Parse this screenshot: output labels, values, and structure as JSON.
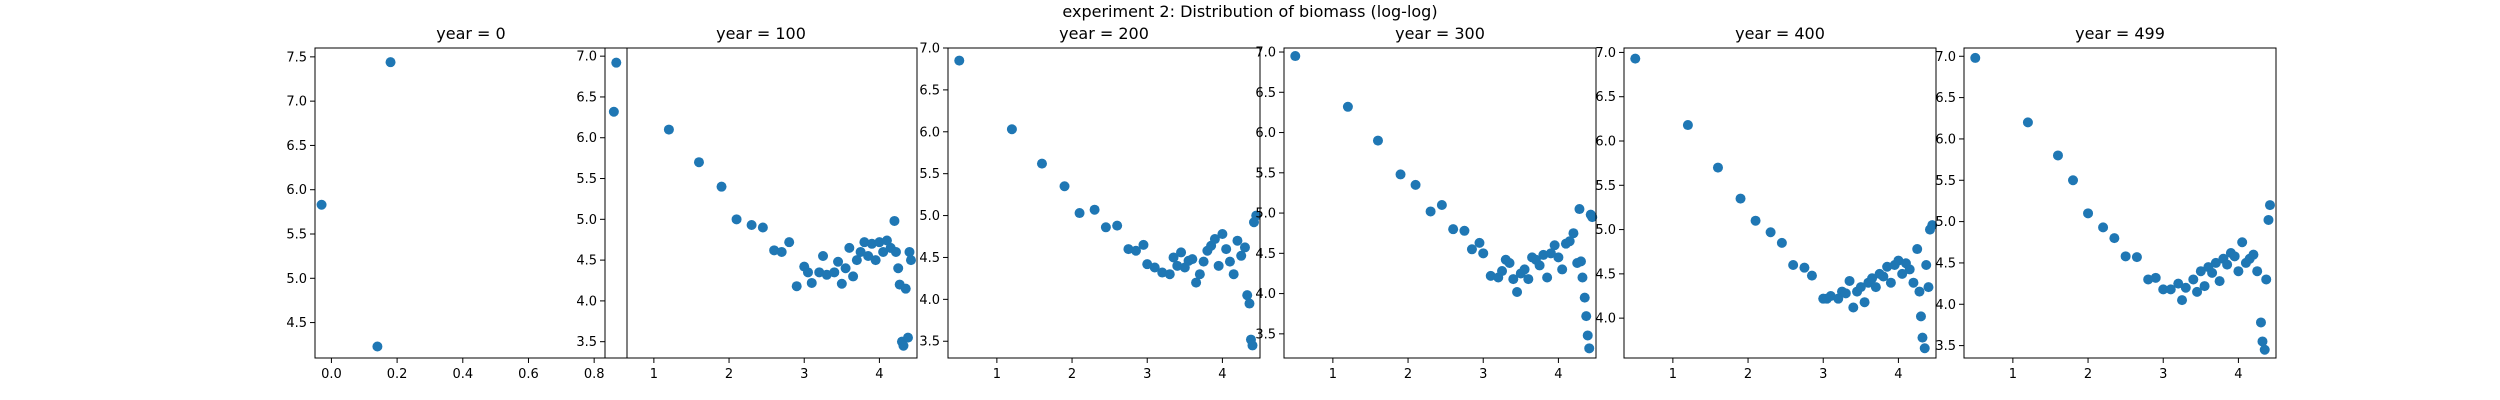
{
  "figure": {
    "title": "experiment 2: Distribution of biomass (log-log)",
    "marker_color": "#1f77b4"
  },
  "chart_data": [
    {
      "type": "scatter",
      "title": "year = 0",
      "xlim": [
        -0.05,
        0.9
      ],
      "ylim": [
        4.1,
        7.6
      ],
      "xticks": [
        0.0,
        0.2,
        0.4,
        0.6,
        0.8
      ],
      "xtick_labels": [
        "0.0",
        "0.2",
        "0.4",
        "0.6",
        "0.8"
      ],
      "yticks": [
        4.5,
        5.0,
        5.5,
        6.0,
        6.5,
        7.0,
        7.5
      ],
      "ytick_labels": [
        "4.5",
        "5.0",
        "5.5",
        "6.0",
        "6.5",
        "7.0",
        "7.5"
      ],
      "points": [
        [
          -0.03,
          5.83
        ],
        [
          0.14,
          4.23
        ],
        [
          0.18,
          7.44
        ],
        [
          0.86,
          6.88
        ]
      ]
    },
    {
      "type": "scatter",
      "title": "year = 100",
      "xlim": [
        0.35,
        4.5
      ],
      "ylim": [
        3.3,
        7.1
      ],
      "xticks": [
        1,
        2,
        3,
        4
      ],
      "xtick_labels": [
        "1",
        "2",
        "3",
        "4"
      ],
      "yticks": [
        3.5,
        4.0,
        4.5,
        5.0,
        5.5,
        6.0,
        6.5,
        7.0
      ],
      "ytick_labels": [
        "3.5",
        "4.0",
        "4.5",
        "5.0",
        "5.5",
        "6.0",
        "6.5",
        "7.0"
      ],
      "points": [
        [
          0.5,
          6.92
        ],
        [
          1.2,
          6.1
        ],
        [
          1.6,
          5.7
        ],
        [
          1.9,
          5.4
        ],
        [
          2.1,
          5.0
        ],
        [
          2.3,
          4.93
        ],
        [
          2.45,
          4.9
        ],
        [
          2.6,
          4.62
        ],
        [
          2.7,
          4.6
        ],
        [
          2.8,
          4.72
        ],
        [
          2.9,
          4.18
        ],
        [
          3.0,
          4.42
        ],
        [
          3.05,
          4.35
        ],
        [
          3.1,
          4.22
        ],
        [
          3.2,
          4.35
        ],
        [
          3.25,
          4.55
        ],
        [
          3.3,
          4.32
        ],
        [
          3.4,
          4.35
        ],
        [
          3.45,
          4.48
        ],
        [
          3.5,
          4.21
        ],
        [
          3.55,
          4.4
        ],
        [
          3.6,
          4.65
        ],
        [
          3.65,
          4.3
        ],
        [
          3.7,
          4.5
        ],
        [
          3.75,
          4.6
        ],
        [
          3.8,
          4.72
        ],
        [
          3.85,
          4.55
        ],
        [
          3.9,
          4.7
        ],
        [
          3.95,
          4.5
        ],
        [
          4.0,
          4.72
        ],
        [
          4.05,
          4.6
        ],
        [
          4.1,
          4.74
        ],
        [
          4.15,
          4.65
        ],
        [
          4.2,
          4.98
        ],
        [
          4.22,
          4.6
        ],
        [
          4.25,
          4.4
        ],
        [
          4.27,
          4.2
        ],
        [
          4.3,
          3.5
        ],
        [
          4.32,
          3.45
        ],
        [
          4.35,
          4.15
        ],
        [
          4.38,
          3.55
        ],
        [
          4.4,
          4.6
        ],
        [
          4.42,
          4.5
        ]
      ]
    },
    {
      "type": "scatter",
      "title": "year = 200",
      "xlim": [
        0.35,
        4.5
      ],
      "ylim": [
        3.3,
        7.0
      ],
      "xticks": [
        1,
        2,
        3,
        4
      ],
      "xtick_labels": [
        "1",
        "2",
        "3",
        "4"
      ],
      "yticks": [
        3.5,
        4.0,
        4.5,
        5.0,
        5.5,
        6.0,
        6.5,
        7.0
      ],
      "ytick_labels": [
        "3.5",
        "4.0",
        "4.5",
        "5.0",
        "5.5",
        "6.0",
        "6.5",
        "7.0"
      ],
      "points": [
        [
          0.5,
          6.85
        ],
        [
          1.2,
          6.03
        ],
        [
          1.6,
          5.62
        ],
        [
          1.9,
          5.35
        ],
        [
          2.1,
          5.03
        ],
        [
          2.3,
          5.07
        ],
        [
          2.45,
          4.86
        ],
        [
          2.6,
          4.88
        ],
        [
          2.75,
          4.6
        ],
        [
          2.85,
          4.58
        ],
        [
          2.95,
          4.65
        ],
        [
          3.0,
          4.42
        ],
        [
          3.1,
          4.38
        ],
        [
          3.2,
          4.32
        ],
        [
          3.3,
          4.3
        ],
        [
          3.35,
          4.5
        ],
        [
          3.4,
          4.4
        ],
        [
          3.45,
          4.56
        ],
        [
          3.5,
          4.38
        ],
        [
          3.55,
          4.46
        ],
        [
          3.6,
          4.48
        ],
        [
          3.65,
          4.2
        ],
        [
          3.7,
          4.3
        ],
        [
          3.75,
          4.45
        ],
        [
          3.8,
          4.58
        ],
        [
          3.85,
          4.64
        ],
        [
          3.9,
          4.72
        ],
        [
          3.95,
          4.4
        ],
        [
          4.0,
          4.78
        ],
        [
          4.05,
          4.6
        ],
        [
          4.1,
          4.45
        ],
        [
          4.15,
          4.3
        ],
        [
          4.2,
          4.7
        ],
        [
          4.25,
          4.52
        ],
        [
          4.3,
          4.62
        ],
        [
          4.33,
          4.05
        ],
        [
          4.36,
          3.95
        ],
        [
          4.38,
          3.52
        ],
        [
          4.4,
          3.45
        ],
        [
          4.42,
          4.92
        ],
        [
          4.45,
          5.0
        ]
      ]
    },
    {
      "type": "scatter",
      "title": "year = 300",
      "xlim": [
        0.35,
        4.5
      ],
      "ylim": [
        3.2,
        7.05
      ],
      "xticks": [
        1,
        2,
        3,
        4
      ],
      "xtick_labels": [
        "1",
        "2",
        "3",
        "4"
      ],
      "yticks": [
        3.5,
        4.0,
        4.5,
        5.0,
        5.5,
        6.0,
        6.5,
        7.0
      ],
      "ytick_labels": [
        "3.5",
        "4.0",
        "4.5",
        "5.0",
        "5.5",
        "6.0",
        "6.5",
        "7.0"
      ],
      "points": [
        [
          0.5,
          6.95
        ],
        [
          1.2,
          6.32
        ],
        [
          1.6,
          5.9
        ],
        [
          1.9,
          5.48
        ],
        [
          2.1,
          5.35
        ],
        [
          2.3,
          5.02
        ],
        [
          2.45,
          5.1
        ],
        [
          2.6,
          4.8
        ],
        [
          2.75,
          4.78
        ],
        [
          2.85,
          4.55
        ],
        [
          2.95,
          4.63
        ],
        [
          3.0,
          4.5
        ],
        [
          3.1,
          4.22
        ],
        [
          3.2,
          4.2
        ],
        [
          3.25,
          4.28
        ],
        [
          3.3,
          4.42
        ],
        [
          3.35,
          4.38
        ],
        [
          3.4,
          4.18
        ],
        [
          3.45,
          4.02
        ],
        [
          3.5,
          4.25
        ],
        [
          3.55,
          4.3
        ],
        [
          3.6,
          4.18
        ],
        [
          3.65,
          4.45
        ],
        [
          3.7,
          4.42
        ],
        [
          3.75,
          4.35
        ],
        [
          3.8,
          4.48
        ],
        [
          3.85,
          4.2
        ],
        [
          3.9,
          4.5
        ],
        [
          3.95,
          4.6
        ],
        [
          4.0,
          4.45
        ],
        [
          4.05,
          4.3
        ],
        [
          4.1,
          4.62
        ],
        [
          4.15,
          4.65
        ],
        [
          4.2,
          4.75
        ],
        [
          4.25,
          4.38
        ],
        [
          4.28,
          5.05
        ],
        [
          4.3,
          4.4
        ],
        [
          4.32,
          4.2
        ],
        [
          4.35,
          3.95
        ],
        [
          4.37,
          3.72
        ],
        [
          4.39,
          3.48
        ],
        [
          4.41,
          3.32
        ],
        [
          4.43,
          4.98
        ],
        [
          4.45,
          4.95
        ]
      ]
    },
    {
      "type": "scatter",
      "title": "year = 400",
      "xlim": [
        0.35,
        4.5
      ],
      "ylim": [
        3.55,
        7.05
      ],
      "xticks": [
        1,
        2,
        3,
        4
      ],
      "xtick_labels": [
        "1",
        "2",
        "3",
        "4"
      ],
      "yticks": [
        4.0,
        4.5,
        5.0,
        5.5,
        6.0,
        6.5,
        7.0
      ],
      "ytick_labels": [
        "4.0",
        "4.5",
        "5.0",
        "5.5",
        "6.0",
        "6.5",
        "7.0"
      ],
      "points": [
        [
          0.5,
          6.93
        ],
        [
          1.2,
          6.18
        ],
        [
          1.6,
          5.7
        ],
        [
          1.9,
          5.35
        ],
        [
          2.1,
          5.1
        ],
        [
          2.3,
          4.97
        ],
        [
          2.45,
          4.85
        ],
        [
          2.6,
          4.6
        ],
        [
          2.75,
          4.57
        ],
        [
          2.85,
          4.48
        ],
        [
          3.0,
          4.22
        ],
        [
          3.05,
          4.22
        ],
        [
          3.1,
          4.25
        ],
        [
          3.2,
          4.22
        ],
        [
          3.25,
          4.3
        ],
        [
          3.3,
          4.28
        ],
        [
          3.35,
          4.42
        ],
        [
          3.4,
          4.12
        ],
        [
          3.45,
          4.3
        ],
        [
          3.5,
          4.35
        ],
        [
          3.55,
          4.18
        ],
        [
          3.6,
          4.4
        ],
        [
          3.65,
          4.45
        ],
        [
          3.7,
          4.35
        ],
        [
          3.75,
          4.5
        ],
        [
          3.8,
          4.47
        ],
        [
          3.85,
          4.58
        ],
        [
          3.9,
          4.4
        ],
        [
          3.95,
          4.6
        ],
        [
          4.0,
          4.65
        ],
        [
          4.05,
          4.5
        ],
        [
          4.1,
          4.62
        ],
        [
          4.15,
          4.55
        ],
        [
          4.2,
          4.4
        ],
        [
          4.25,
          4.78
        ],
        [
          4.28,
          4.3
        ],
        [
          4.3,
          4.02
        ],
        [
          4.32,
          3.78
        ],
        [
          4.35,
          3.66
        ],
        [
          4.37,
          4.6
        ],
        [
          4.4,
          4.35
        ],
        [
          4.42,
          5.0
        ],
        [
          4.45,
          5.05
        ]
      ]
    },
    {
      "type": "scatter",
      "title": "year = 499",
      "xlim": [
        0.35,
        4.5
      ],
      "ylim": [
        3.35,
        7.1
      ],
      "xticks": [
        1,
        2,
        3,
        4
      ],
      "xtick_labels": [
        "1",
        "2",
        "3",
        "4"
      ],
      "yticks": [
        3.5,
        4.0,
        4.5,
        5.0,
        5.5,
        6.0,
        6.5,
        7.0
      ],
      "ytick_labels": [
        "3.5",
        "4.0",
        "4.5",
        "5.0",
        "5.5",
        "6.0",
        "6.5",
        "7.0"
      ],
      "points": [
        [
          0.5,
          6.98
        ],
        [
          1.2,
          6.2
        ],
        [
          1.6,
          5.8
        ],
        [
          1.8,
          5.5
        ],
        [
          2.0,
          5.1
        ],
        [
          2.2,
          4.93
        ],
        [
          2.35,
          4.8
        ],
        [
          2.5,
          4.58
        ],
        [
          2.65,
          4.57
        ],
        [
          2.8,
          4.3
        ],
        [
          2.9,
          4.32
        ],
        [
          3.0,
          4.18
        ],
        [
          3.1,
          4.18
        ],
        [
          3.2,
          4.25
        ],
        [
          3.25,
          4.05
        ],
        [
          3.3,
          4.2
        ],
        [
          3.4,
          4.3
        ],
        [
          3.45,
          4.15
        ],
        [
          3.5,
          4.4
        ],
        [
          3.55,
          4.22
        ],
        [
          3.6,
          4.45
        ],
        [
          3.65,
          4.38
        ],
        [
          3.7,
          4.5
        ],
        [
          3.75,
          4.28
        ],
        [
          3.8,
          4.55
        ],
        [
          3.85,
          4.48
        ],
        [
          3.9,
          4.62
        ],
        [
          3.95,
          4.58
        ],
        [
          4.0,
          4.4
        ],
        [
          4.05,
          4.75
        ],
        [
          4.1,
          4.5
        ],
        [
          4.15,
          4.55
        ],
        [
          4.2,
          4.6
        ],
        [
          4.25,
          4.4
        ],
        [
          4.3,
          3.78
        ],
        [
          4.32,
          3.55
        ],
        [
          4.35,
          3.45
        ],
        [
          4.37,
          4.3
        ],
        [
          4.4,
          5.02
        ],
        [
          4.42,
          5.2
        ]
      ]
    }
  ]
}
